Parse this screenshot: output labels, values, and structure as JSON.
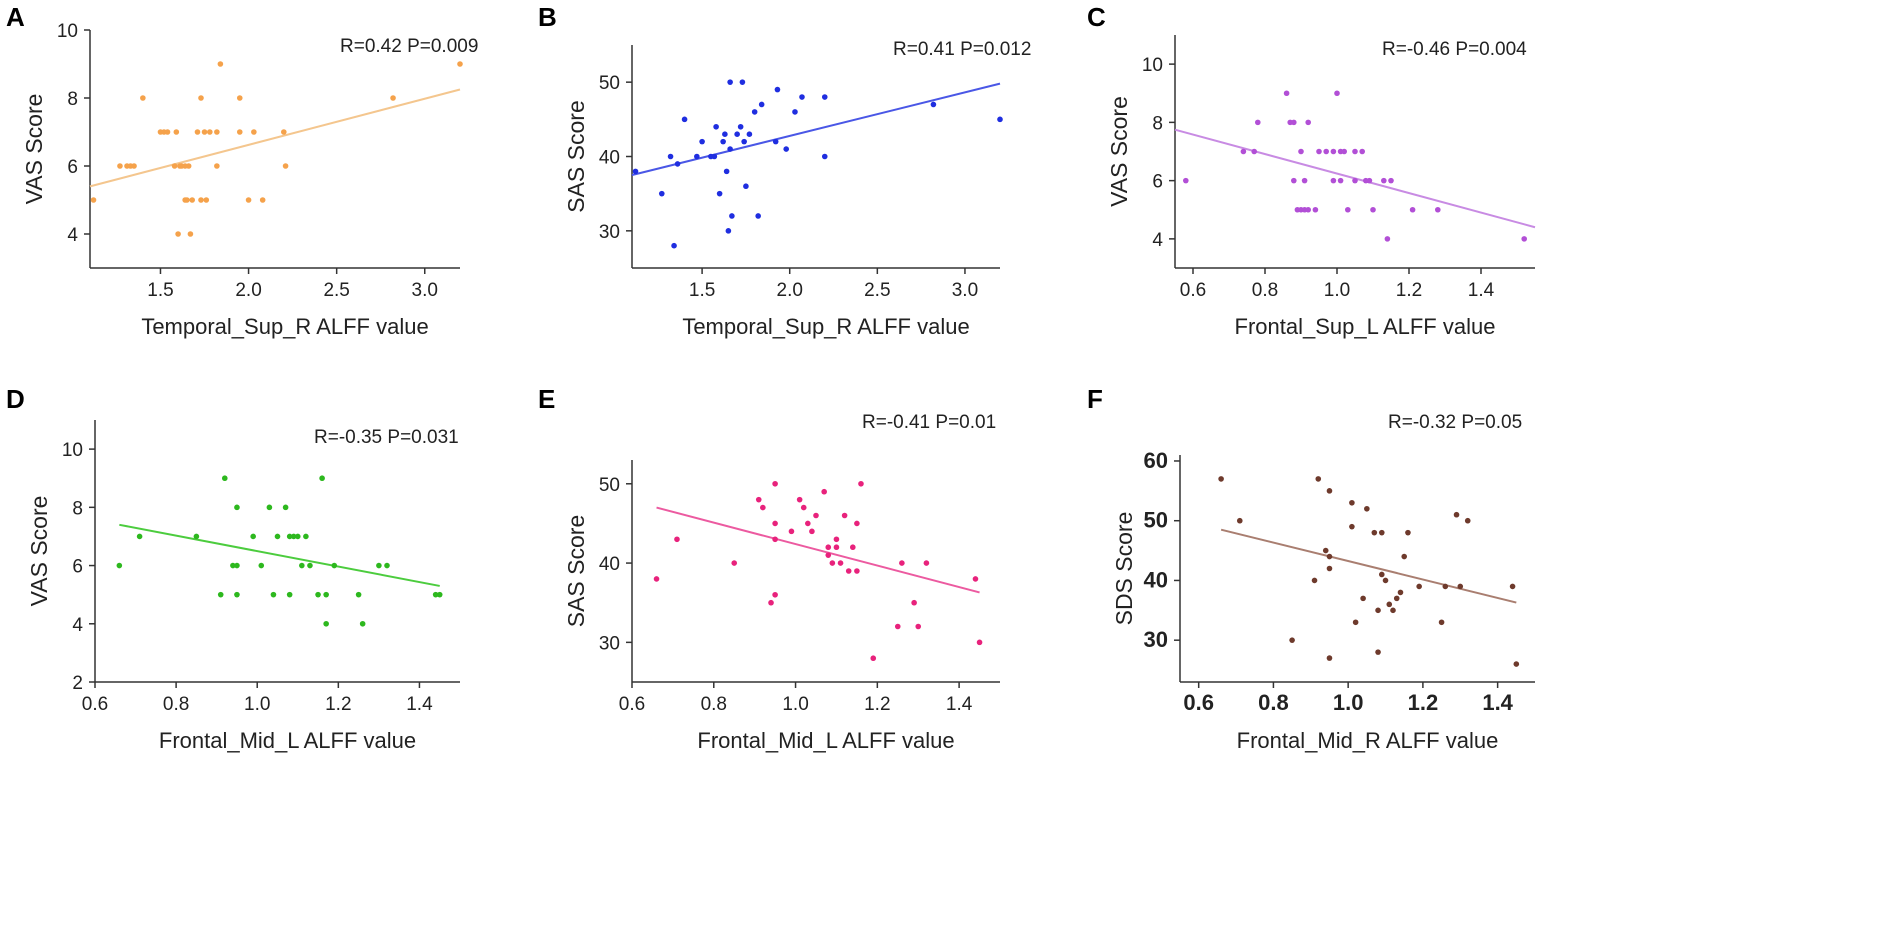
{
  "chart_data": [
    {
      "panel": "A",
      "type": "scatter",
      "stat_label": "R=0.42  P=0.009",
      "xlabel": "Temporal_Sup_R ALFF value",
      "ylabel": "VAS Score",
      "xlim": [
        1.1,
        3.2
      ],
      "ylim": [
        3,
        10
      ],
      "xticks": [
        "1.5",
        "2.0",
        "2.5",
        "3.0"
      ],
      "yticks": [
        "4",
        "6",
        "8",
        "10"
      ],
      "color": "#f5a24b",
      "line_color": "#f4c68e",
      "regression": [
        [
          1.1,
          5.4
        ],
        [
          3.2,
          8.25
        ]
      ],
      "points": [
        [
          1.12,
          5
        ],
        [
          1.27,
          6
        ],
        [
          1.31,
          6
        ],
        [
          1.33,
          6
        ],
        [
          1.35,
          6
        ],
        [
          1.4,
          8
        ],
        [
          1.5,
          7
        ],
        [
          1.52,
          7
        ],
        [
          1.54,
          7
        ],
        [
          1.58,
          6
        ],
        [
          1.6,
          4
        ],
        [
          1.59,
          7
        ],
        [
          1.61,
          6
        ],
        [
          1.62,
          6
        ],
        [
          1.64,
          6
        ],
        [
          1.64,
          5
        ],
        [
          1.65,
          5
        ],
        [
          1.66,
          6
        ],
        [
          1.67,
          4
        ],
        [
          1.68,
          5
        ],
        [
          1.71,
          7
        ],
        [
          1.73,
          8
        ],
        [
          1.73,
          5
        ],
        [
          1.75,
          7
        ],
        [
          1.76,
          5
        ],
        [
          1.78,
          7
        ],
        [
          1.82,
          6
        ],
        [
          1.82,
          7
        ],
        [
          1.84,
          9
        ],
        [
          1.95,
          8
        ],
        [
          1.95,
          7
        ],
        [
          2.0,
          5
        ],
        [
          2.03,
          7
        ],
        [
          2.08,
          5
        ],
        [
          2.2,
          7
        ],
        [
          2.21,
          6
        ],
        [
          2.82,
          8
        ],
        [
          3.2,
          9
        ]
      ]
    },
    {
      "panel": "B",
      "type": "scatter",
      "stat_label": "R=0.41  P=0.012",
      "xlabel": "Temporal_Sup_R ALFF value",
      "ylabel": "SAS Score",
      "xlim": [
        1.1,
        3.2
      ],
      "ylim": [
        25,
        55
      ],
      "xticks": [
        "1.5",
        "2.0",
        "2.5",
        "3.0"
      ],
      "yticks": [
        "30",
        "40",
        "50"
      ],
      "color": "#1f2ee0",
      "line_color": "#4a57e6",
      "regression": [
        [
          1.1,
          37.5
        ],
        [
          3.2,
          49.8
        ]
      ],
      "points": [
        [
          1.12,
          38
        ],
        [
          1.27,
          35
        ],
        [
          1.32,
          40
        ],
        [
          1.34,
          28
        ],
        [
          1.36,
          39
        ],
        [
          1.4,
          45
        ],
        [
          1.47,
          40
        ],
        [
          1.5,
          42
        ],
        [
          1.55,
          40
        ],
        [
          1.57,
          40
        ],
        [
          1.58,
          44
        ],
        [
          1.6,
          35
        ],
        [
          1.62,
          42
        ],
        [
          1.63,
          43
        ],
        [
          1.64,
          38
        ],
        [
          1.65,
          30
        ],
        [
          1.66,
          41
        ],
        [
          1.66,
          50
        ],
        [
          1.67,
          32
        ],
        [
          1.7,
          43
        ],
        [
          1.72,
          44
        ],
        [
          1.73,
          50
        ],
        [
          1.74,
          42
        ],
        [
          1.75,
          36
        ],
        [
          1.77,
          43
        ],
        [
          1.8,
          46
        ],
        [
          1.82,
          32
        ],
        [
          1.84,
          47
        ],
        [
          1.92,
          42
        ],
        [
          1.93,
          49
        ],
        [
          1.98,
          41
        ],
        [
          2.03,
          46
        ],
        [
          2.07,
          48
        ],
        [
          2.2,
          48
        ],
        [
          2.2,
          40
        ],
        [
          2.82,
          47
        ],
        [
          3.2,
          45
        ]
      ]
    },
    {
      "panel": "C",
      "type": "scatter",
      "stat_label": "R=-0.46  P=0.004",
      "xlabel": "Frontal_Sup_L ALFF value",
      "ylabel": "VAS Score",
      "xlim": [
        0.55,
        1.55
      ],
      "ylim": [
        3,
        11
      ],
      "xticks": [
        "0.6",
        "0.8",
        "1.0",
        "1.2",
        "1.4"
      ],
      "yticks": [
        "4",
        "6",
        "8",
        "10"
      ],
      "color": "#b24fd6",
      "line_color": "#c88be3",
      "regression": [
        [
          0.55,
          7.75
        ],
        [
          1.55,
          4.4
        ]
      ],
      "points": [
        [
          0.58,
          6
        ],
        [
          0.74,
          7
        ],
        [
          0.77,
          7
        ],
        [
          0.78,
          8
        ],
        [
          0.86,
          9
        ],
        [
          0.87,
          8
        ],
        [
          0.88,
          8
        ],
        [
          0.88,
          6
        ],
        [
          0.89,
          5
        ],
        [
          0.9,
          5
        ],
        [
          0.9,
          7
        ],
        [
          0.91,
          5
        ],
        [
          0.91,
          6
        ],
        [
          0.92,
          5
        ],
        [
          0.92,
          8
        ],
        [
          0.94,
          5
        ],
        [
          0.95,
          7
        ],
        [
          0.97,
          7
        ],
        [
          0.99,
          6
        ],
        [
          0.99,
          7
        ],
        [
          1.0,
          9
        ],
        [
          1.01,
          7
        ],
        [
          1.01,
          6
        ],
        [
          1.02,
          7
        ],
        [
          1.03,
          5
        ],
        [
          1.05,
          6
        ],
        [
          1.05,
          7
        ],
        [
          1.07,
          7
        ],
        [
          1.08,
          6
        ],
        [
          1.09,
          6
        ],
        [
          1.1,
          5
        ],
        [
          1.13,
          6
        ],
        [
          1.14,
          4
        ],
        [
          1.15,
          6
        ],
        [
          1.21,
          5
        ],
        [
          1.28,
          5
        ],
        [
          1.52,
          4
        ]
      ]
    },
    {
      "panel": "D",
      "type": "scatter",
      "stat_label": "R=-0.35 P=0.031",
      "xlabel": "Frontal_Mid_L ALFF value",
      "ylabel": "VAS Score",
      "xlim": [
        0.6,
        1.5
      ],
      "ylim": [
        2,
        11
      ],
      "xticks": [
        "0.6",
        "0.8",
        "1.0",
        "1.2",
        "1.4"
      ],
      "yticks": [
        "2",
        "4",
        "6",
        "8",
        "10"
      ],
      "color": "#2db81e",
      "line_color": "#4ccc3e",
      "regression": [
        [
          0.66,
          7.4
        ],
        [
          1.45,
          5.3
        ]
      ],
      "points": [
        [
          0.66,
          6
        ],
        [
          0.71,
          7
        ],
        [
          0.85,
          7
        ],
        [
          0.91,
          5
        ],
        [
          0.92,
          9
        ],
        [
          0.94,
          6
        ],
        [
          0.95,
          8
        ],
        [
          0.95,
          6
        ],
        [
          0.95,
          5
        ],
        [
          0.99,
          7
        ],
        [
          1.01,
          6
        ],
        [
          1.03,
          8
        ],
        [
          1.04,
          5
        ],
        [
          1.05,
          7
        ],
        [
          1.07,
          8
        ],
        [
          1.08,
          5
        ],
        [
          1.08,
          7
        ],
        [
          1.09,
          7
        ],
        [
          1.1,
          7
        ],
        [
          1.11,
          6
        ],
        [
          1.12,
          7
        ],
        [
          1.13,
          6
        ],
        [
          1.15,
          5
        ],
        [
          1.16,
          9
        ],
        [
          1.17,
          4
        ],
        [
          1.17,
          5
        ],
        [
          1.19,
          6
        ],
        [
          1.25,
          5
        ],
        [
          1.26,
          4
        ],
        [
          1.3,
          6
        ],
        [
          1.32,
          6
        ],
        [
          1.44,
          5
        ],
        [
          1.45,
          5
        ]
      ]
    },
    {
      "panel": "E",
      "type": "scatter",
      "stat_label": "R=-0.41  P=0.01",
      "xlabel": "Frontal_Mid_L ALFF value",
      "ylabel": "SAS Score",
      "xlim": [
        0.6,
        1.5
      ],
      "ylim": [
        25,
        53
      ],
      "xticks": [
        "0.6",
        "0.8",
        "1.0",
        "1.2",
        "1.4"
      ],
      "yticks": [
        "30",
        "40",
        "50"
      ],
      "color": "#e8227c",
      "line_color": "#ec5aa0",
      "regression": [
        [
          0.66,
          47.0
        ],
        [
          1.45,
          36.3
        ]
      ],
      "points": [
        [
          0.66,
          38
        ],
        [
          0.71,
          43
        ],
        [
          0.85,
          40
        ],
        [
          0.91,
          48
        ],
        [
          0.92,
          47
        ],
        [
          0.94,
          35
        ],
        [
          0.95,
          36
        ],
        [
          0.95,
          43
        ],
        [
          0.95,
          45
        ],
        [
          0.95,
          50
        ],
        [
          0.99,
          44
        ],
        [
          1.01,
          48
        ],
        [
          1.02,
          47
        ],
        [
          1.03,
          45
        ],
        [
          1.04,
          44
        ],
        [
          1.05,
          46
        ],
        [
          1.07,
          49
        ],
        [
          1.08,
          41
        ],
        [
          1.08,
          42
        ],
        [
          1.09,
          40
        ],
        [
          1.1,
          42
        ],
        [
          1.1,
          43
        ],
        [
          1.11,
          40
        ],
        [
          1.12,
          46
        ],
        [
          1.13,
          39
        ],
        [
          1.14,
          42
        ],
        [
          1.15,
          45
        ],
        [
          1.16,
          50
        ],
        [
          1.15,
          39
        ],
        [
          1.19,
          28
        ],
        [
          1.25,
          32
        ],
        [
          1.26,
          40
        ],
        [
          1.29,
          35
        ],
        [
          1.3,
          32
        ],
        [
          1.32,
          40
        ],
        [
          1.44,
          38
        ],
        [
          1.45,
          30
        ]
      ]
    },
    {
      "panel": "F",
      "type": "scatter",
      "stat_label": "R=-0.32  P=0.05",
      "xlabel": "Frontal_Mid_R ALFF value",
      "ylabel": "SDS Score",
      "xlim": [
        0.55,
        1.5
      ],
      "ylim": [
        23,
        61
      ],
      "xticks": [
        "0.6",
        "0.8",
        "1.0",
        "1.2",
        "1.4"
      ],
      "yticks": [
        "30",
        "40",
        "50",
        "60"
      ],
      "color": "#6e3a2c",
      "line_color": "#a97e70",
      "regression": [
        [
          0.66,
          48.5
        ],
        [
          1.45,
          36.3
        ]
      ],
      "points": [
        [
          0.66,
          57
        ],
        [
          0.71,
          50
        ],
        [
          0.85,
          30
        ],
        [
          0.91,
          40
        ],
        [
          0.92,
          57
        ],
        [
          0.94,
          45
        ],
        [
          0.95,
          44
        ],
        [
          0.95,
          55
        ],
        [
          0.95,
          27
        ],
        [
          0.95,
          42
        ],
        [
          1.01,
          53
        ],
        [
          1.01,
          49
        ],
        [
          1.02,
          33
        ],
        [
          1.04,
          37
        ],
        [
          1.05,
          52
        ],
        [
          1.07,
          48
        ],
        [
          1.08,
          28
        ],
        [
          1.08,
          35
        ],
        [
          1.09,
          48
        ],
        [
          1.09,
          41
        ],
        [
          1.1,
          40
        ],
        [
          1.11,
          36
        ],
        [
          1.12,
          35
        ],
        [
          1.13,
          37
        ],
        [
          1.14,
          38
        ],
        [
          1.15,
          44
        ],
        [
          1.16,
          48
        ],
        [
          1.19,
          39
        ],
        [
          1.25,
          33
        ],
        [
          1.26,
          39
        ],
        [
          1.29,
          51
        ],
        [
          1.3,
          39
        ],
        [
          1.32,
          50
        ],
        [
          1.44,
          39
        ],
        [
          1.45,
          26
        ]
      ]
    }
  ]
}
